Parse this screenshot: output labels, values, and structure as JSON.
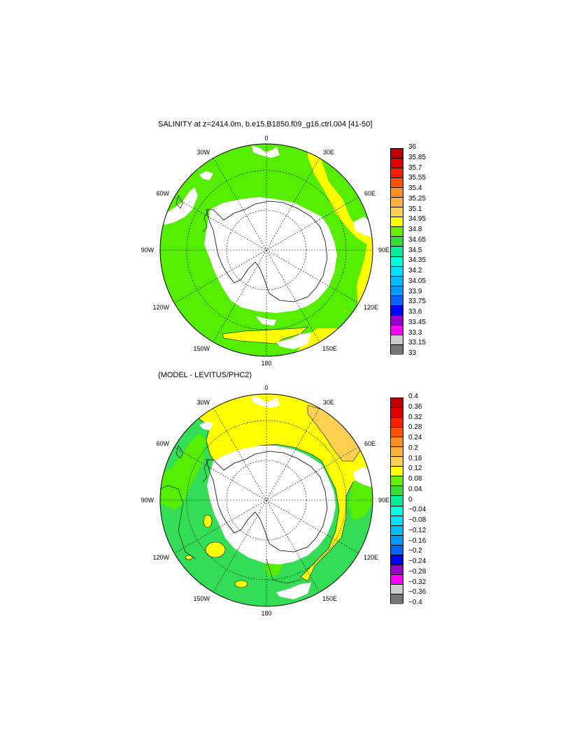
{
  "panel1": {
    "title": "SALINITY at z=2414.0m, b.e15.B1850.f09_g16.ctrl.004 [41-50]",
    "lon_labels": [
      "0",
      "30E",
      "60E",
      "90E",
      "120E",
      "150E",
      "180",
      "150W",
      "120W",
      "90W",
      "60W",
      "30W"
    ],
    "colorbar": {
      "labels": [
        "36",
        "35.85",
        "35.7",
        "35.55",
        "35.4",
        "35.25",
        "35.1",
        "34.95",
        "34.8",
        "34.65",
        "34.5",
        "34.35",
        "34.2",
        "34.05",
        "33.9",
        "33.75",
        "33.6",
        "33.45",
        "33.3",
        "33.15",
        "33"
      ],
      "colors": [
        "#c00000",
        "#e00000",
        "#ff2000",
        "#ff5000",
        "#ff9020",
        "#ffb040",
        "#ffd050",
        "#ffff00",
        "#66ee00",
        "#33dd33",
        "#00ee99",
        "#00ffdd",
        "#00e0ff",
        "#00bbff",
        "#0099ff",
        "#0066ff",
        "#0000ff",
        "#9900cc",
        "#ff00ff",
        "#cccccc",
        "#777777"
      ]
    }
  },
  "panel2": {
    "title": "(MODEL - LEVITUS/PHC2)",
    "lon_labels": [
      "0",
      "30E",
      "60E",
      "90E",
      "120E",
      "150E",
      "180",
      "150W",
      "120W",
      "90W",
      "60W",
      "30W"
    ],
    "colorbar": {
      "labels": [
        "0.4",
        "0.36",
        "0.32",
        "0.28",
        "0.24",
        "0.2",
        "0.16",
        "0.12",
        "0.08",
        "0.04",
        "0",
        "−0.04",
        "−0.08",
        "−0.12",
        "−0.16",
        "−0.2",
        "−0.24",
        "−0.28",
        "−0.32",
        "−0.36",
        "−0.4"
      ],
      "colors": [
        "#c00000",
        "#e00000",
        "#ff2000",
        "#ff5000",
        "#ff9020",
        "#ffb040",
        "#ffd050",
        "#ffff00",
        "#66ee00",
        "#33dd33",
        "#00ee99",
        "#00ffdd",
        "#00e0ff",
        "#00bbff",
        "#0099ff",
        "#0066ff",
        "#0000ff",
        "#9900cc",
        "#ff00ff",
        "#cccccc",
        "#777777"
      ]
    }
  },
  "colors": {
    "green": "#55ee00",
    "yellow": "#ffff00",
    "light_orange": "#ffd050",
    "teal_green": "#33dd55",
    "land": "#ffffff",
    "coastline": "#000000"
  }
}
